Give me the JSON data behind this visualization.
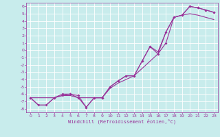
{
  "xlabel": "Windchill (Refroidissement éolien,°C)",
  "xlim": [
    -0.5,
    23.5
  ],
  "ylim": [
    -8.5,
    6.5
  ],
  "xticks": [
    0,
    1,
    2,
    3,
    4,
    5,
    6,
    7,
    8,
    9,
    10,
    11,
    12,
    13,
    14,
    15,
    16,
    17,
    18,
    19,
    20,
    21,
    22,
    23
  ],
  "yticks": [
    -8,
    -7,
    -6,
    -5,
    -4,
    -3,
    -2,
    -1,
    0,
    1,
    2,
    3,
    4,
    5,
    6
  ],
  "bg_color": "#c8ecec",
  "line_color": "#993399",
  "grid_color": "#aadddd",
  "series1_x": [
    0,
    1,
    2,
    3,
    4,
    5,
    6,
    7,
    8,
    9,
    10,
    11,
    12,
    13,
    14,
    15,
    16,
    17,
    18,
    19,
    20,
    21,
    22,
    23
  ],
  "series1_y": [
    -6.5,
    -7.5,
    -7.5,
    -6.5,
    -6.0,
    -6.0,
    -6.5,
    -7.8,
    -6.5,
    -6.5,
    -5.0,
    -4.2,
    -3.5,
    -3.5,
    -1.5,
    0.5,
    -0.5,
    1.0,
    4.5,
    4.8,
    6.0,
    5.8,
    5.5,
    5.2
  ],
  "series2_x": [
    0,
    1,
    2,
    3,
    4,
    5,
    6,
    7,
    8,
    9,
    10,
    11,
    12,
    13,
    14,
    15,
    16,
    17,
    18,
    19,
    20,
    21,
    22,
    23
  ],
  "series2_y": [
    -6.5,
    -7.5,
    -7.5,
    -6.5,
    -6.2,
    -6.2,
    -6.5,
    -6.5,
    -6.5,
    -6.5,
    -5.2,
    -4.5,
    -4.0,
    -3.5,
    -2.5,
    -1.5,
    -0.5,
    2.5,
    4.5,
    4.8,
    5.0,
    4.8,
    4.5,
    4.2
  ],
  "series3_x": [
    0,
    3,
    4,
    5,
    6,
    7,
    8,
    9,
    10,
    11,
    12,
    13,
    14,
    15,
    16,
    17,
    18,
    19,
    20,
    21,
    22,
    23
  ],
  "series3_y": [
    -6.5,
    -6.5,
    -6.2,
    -6.0,
    -6.2,
    -7.8,
    -6.5,
    -6.5,
    -5.0,
    -4.2,
    -3.5,
    -3.5,
    -1.5,
    0.5,
    -0.2,
    2.5,
    4.5,
    4.8,
    6.0,
    5.8,
    5.5,
    5.2
  ],
  "tick_fontsize": 4.5,
  "xlabel_fontsize": 5.0,
  "lw": 0.8,
  "ms": 2.0
}
